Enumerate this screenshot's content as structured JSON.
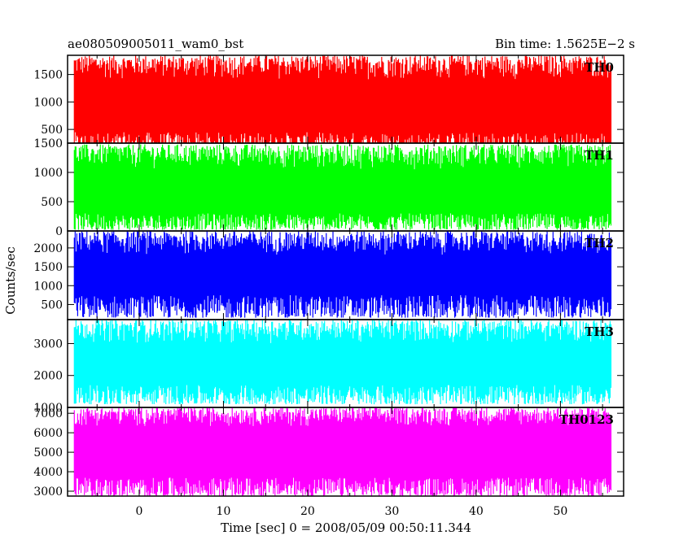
{
  "header": {
    "title": "ae080509005011_wam0_bst",
    "bin_time": "Bin time: 1.5625E−2 s"
  },
  "chart_data": {
    "type": "line",
    "ylabel": "Counts/sec",
    "xlabel": "Time [sec] 0 = 2008/05/09 00:50:11.344",
    "xlim": [
      -8.5,
      57.5
    ],
    "data_x_range": [
      -7.7,
      56.0
    ],
    "x_ticks": [
      0,
      10,
      20,
      30,
      40,
      50
    ],
    "x_tick_labels": [
      "0",
      "10",
      "20",
      "30",
      "40",
      "50"
    ],
    "panels": [
      {
        "name": "TH0",
        "color": "#ff0000",
        "ylim": [
          250,
          1850
        ],
        "y_ticks": [
          500,
          1000,
          1500
        ],
        "y_tick_labels": [
          "500",
          "1000",
          "1500"
        ],
        "envelope": {
          "low": [
            100,
            450
          ],
          "high": [
            1400,
            1850
          ]
        }
      },
      {
        "name": "TH1",
        "color": "#00ff00",
        "ylim": [
          0,
          1500
        ],
        "y_ticks": [
          0,
          500,
          1000,
          1500
        ],
        "y_tick_labels": [
          "0",
          "500",
          "1000",
          "1500"
        ],
        "envelope": {
          "low": [
            20,
            300
          ],
          "high": [
            1050,
            1480
          ]
        }
      },
      {
        "name": "TH2",
        "color": "#0000ff",
        "ylim": [
          100,
          2450
        ],
        "y_ticks": [
          500,
          1000,
          1500,
          2000
        ],
        "y_tick_labels": [
          "500",
          "1000",
          "1500",
          "2000"
        ],
        "envelope": {
          "low": [
            150,
            750
          ],
          "high": [
            1800,
            2450
          ]
        }
      },
      {
        "name": "TH3",
        "color": "#00ffff",
        "ylim": [
          1000,
          3750
        ],
        "y_ticks": [
          1000,
          2000,
          3000
        ],
        "y_tick_labels": [
          "1000",
          "2000",
          "3000"
        ],
        "envelope": {
          "low": [
            1100,
            1700
          ],
          "high": [
            3000,
            3750
          ]
        }
      },
      {
        "name": "TH0123",
        "color": "#ff00ff",
        "ylim": [
          2750,
          7300
        ],
        "y_ticks": [
          3000,
          4000,
          5000,
          6000,
          7000
        ],
        "y_tick_labels": [
          "3000",
          "4000",
          "5000",
          "6000",
          "7000"
        ],
        "envelope": {
          "low": [
            2750,
            3700
          ],
          "high": [
            6300,
            7300
          ]
        }
      }
    ]
  }
}
